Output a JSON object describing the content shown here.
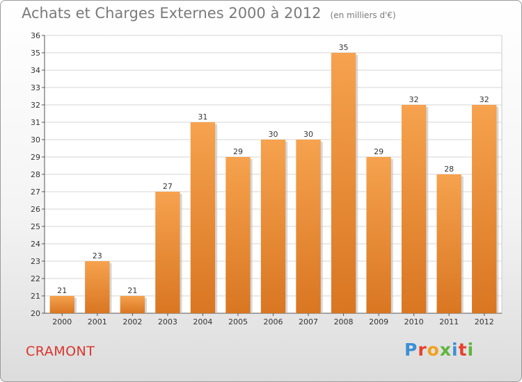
{
  "chart_data": {
    "type": "bar",
    "title": "Achats et Charges Externes 2000 à 2012",
    "subtitle": "(en milliers d'€)",
    "categories": [
      "2000",
      "2001",
      "2002",
      "2003",
      "2004",
      "2005",
      "2006",
      "2007",
      "2008",
      "2009",
      "2010",
      "2011",
      "2012"
    ],
    "values": [
      21,
      23,
      21,
      27,
      31,
      29,
      30,
      30,
      35,
      29,
      32,
      28,
      32
    ],
    "ylim": [
      20,
      36
    ],
    "yticks": [
      20,
      21,
      22,
      23,
      24,
      25,
      26,
      27,
      28,
      29,
      30,
      31,
      32,
      33,
      34,
      35,
      36
    ],
    "xlabel": "",
    "ylabel": "",
    "grid": true,
    "bar_color_top": "#f6a24e",
    "bar_color_bottom": "#d97622"
  },
  "footer": {
    "commune": "CRAMONT",
    "brand": "Proxiti",
    "brand_colors": [
      "#3b8fd6",
      "#e8402c",
      "#f0a11c",
      "#5fb53a",
      "#3b8fd6",
      "#e8402c",
      "#5fb53a"
    ]
  },
  "colors": {
    "grid": "#d6d6d6",
    "commune": "#d9342b",
    "title": "#7a7a7a"
  }
}
